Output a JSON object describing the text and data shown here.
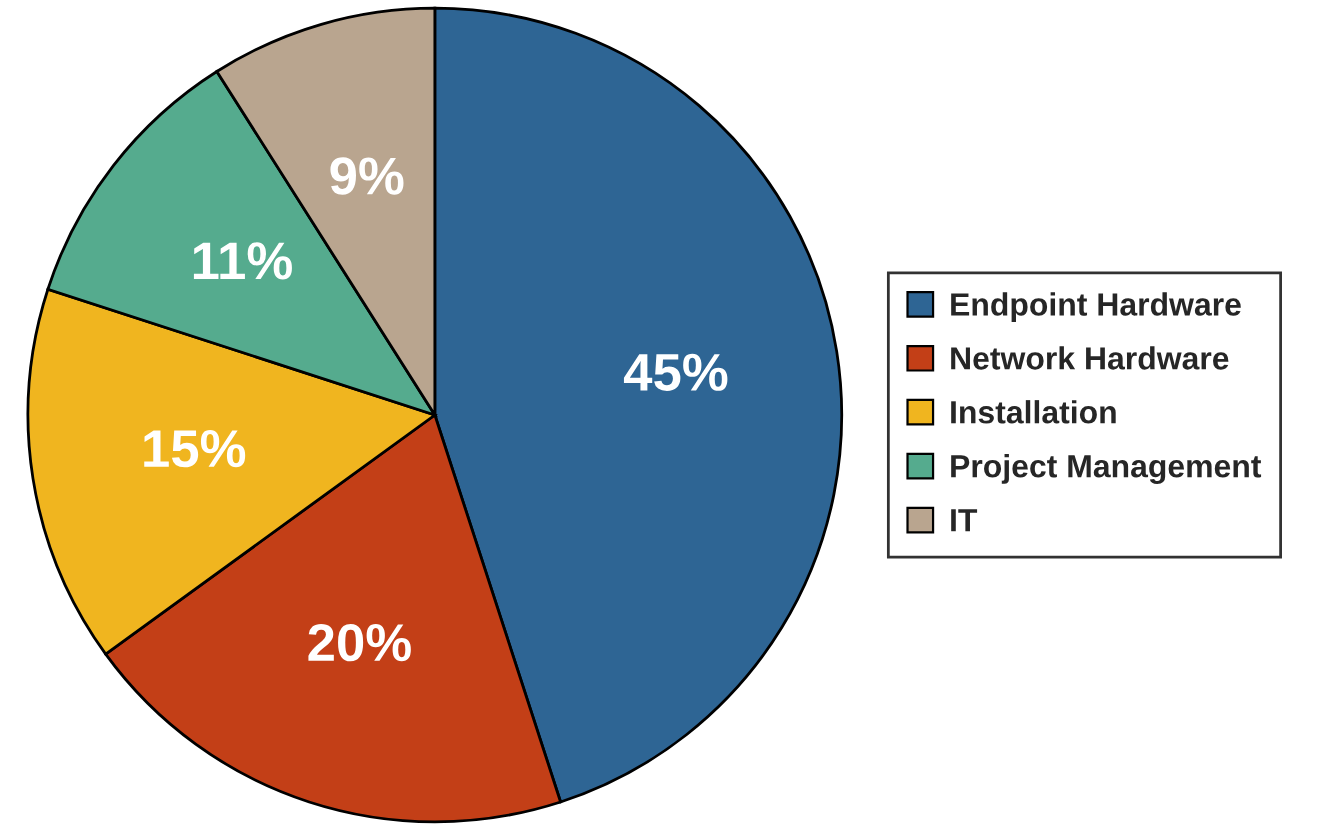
{
  "chart_data": {
    "type": "pie",
    "categories": [
      "Endpoint Hardware",
      "Network Hardware",
      "Installation",
      "Project Management",
      "IT"
    ],
    "values": [
      45,
      20,
      15,
      11,
      9
    ],
    "value_labels": [
      "45%",
      "20%",
      "15%",
      "11%",
      "9%"
    ],
    "colors": [
      "#2e6594",
      "#c33f17",
      "#f0b51f",
      "#55ab8e",
      "#b9a58f"
    ],
    "legend": "right"
  }
}
